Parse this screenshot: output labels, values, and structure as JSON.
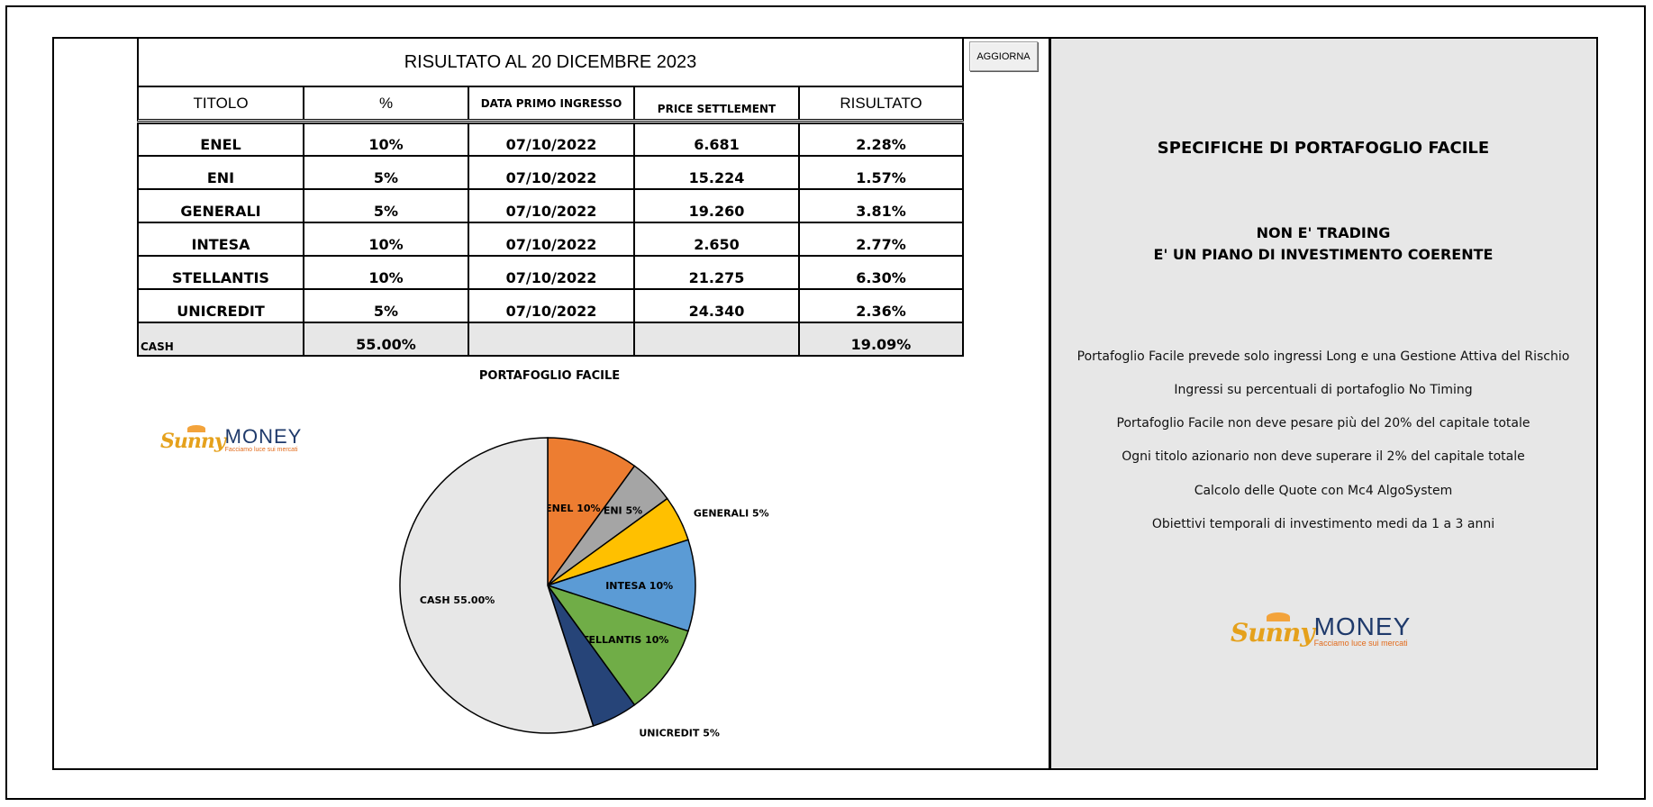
{
  "table": {
    "title": "RISULTATO AL 20 DICEMBRE 2023",
    "headers": [
      "TITOLO",
      "%",
      "DATA PRIMO INGRESSO",
      "PRICE SETTLEMENT",
      "RISULTATO"
    ],
    "rows": [
      {
        "titolo": "ENEL",
        "pct": "10%",
        "data": "07/10/2022",
        "price": "6.681",
        "risultato": "2.28%"
      },
      {
        "titolo": "ENI",
        "pct": "5%",
        "data": "07/10/2022",
        "price": "15.224",
        "risultato": "1.57%"
      },
      {
        "titolo": "GENERALI",
        "pct": "5%",
        "data": "07/10/2022",
        "price": "19.260",
        "risultato": "3.81%"
      },
      {
        "titolo": "INTESA",
        "pct": "10%",
        "data": "07/10/2022",
        "price": "2.650",
        "risultato": "2.77%"
      },
      {
        "titolo": "STELLANTIS",
        "pct": "10%",
        "data": "07/10/2022",
        "price": "21.275",
        "risultato": "6.30%"
      },
      {
        "titolo": "UNICREDIT",
        "pct": "5%",
        "data": "07/10/2022",
        "price": "24.340",
        "risultato": "2.36%"
      }
    ],
    "cash": {
      "label": "CASH",
      "pct": "55.00%",
      "risultato": "19.09%"
    }
  },
  "button": {
    "aggiorna": "AGGIORNA"
  },
  "chart_data": {
    "type": "pie",
    "title": "PORTAFOGLIO FACILE",
    "slices": [
      {
        "name": "ENEL",
        "label": "ENEL 10%",
        "value": 10,
        "color": "#ed7d31"
      },
      {
        "name": "ENI",
        "label": "ENI 5%",
        "value": 5,
        "color": "#a5a5a5"
      },
      {
        "name": "GENERALI",
        "label": "GENERALI 5%",
        "value": 5,
        "color": "#ffc000"
      },
      {
        "name": "INTESA",
        "label": "INTESA  10%",
        "value": 10,
        "color": "#5b9bd5"
      },
      {
        "name": "STELLANTIS",
        "label": "STELLANTIS 10%",
        "value": 10,
        "color": "#70ad47"
      },
      {
        "name": "UNICREDIT",
        "label": "UNICREDIT 5%",
        "value": 5,
        "color": "#264478"
      },
      {
        "name": "CASH",
        "label": "CASH 55.00%",
        "value": 55,
        "color": "#e7e7e7"
      }
    ]
  },
  "logo": {
    "sunny": "Sunny",
    "money": "MONEY",
    "tagline": "Facciamo luce sui mercati"
  },
  "specs": {
    "title": "SPECIFICHE DI PORTAFOGLIO FACILE",
    "subtitle_1": "NON E' TRADING",
    "subtitle_2": "E' UN PIANO DI INVESTIMENTO COERENTE",
    "lines": [
      "Portafoglio Facile prevede solo ingressi Long e una Gestione Attiva del Rischio",
      "Ingressi su percentuali di portafoglio No Timing",
      "Portafoglio Facile non deve pesare più del 20% del capitale totale",
      "Ogni titolo azionario non deve superare il 2% del capitale totale",
      "Calcolo delle Quote con Mc4 AlgoSystem",
      "Obiettivi temporali di investimento medi da 1 a 3 anni"
    ]
  }
}
